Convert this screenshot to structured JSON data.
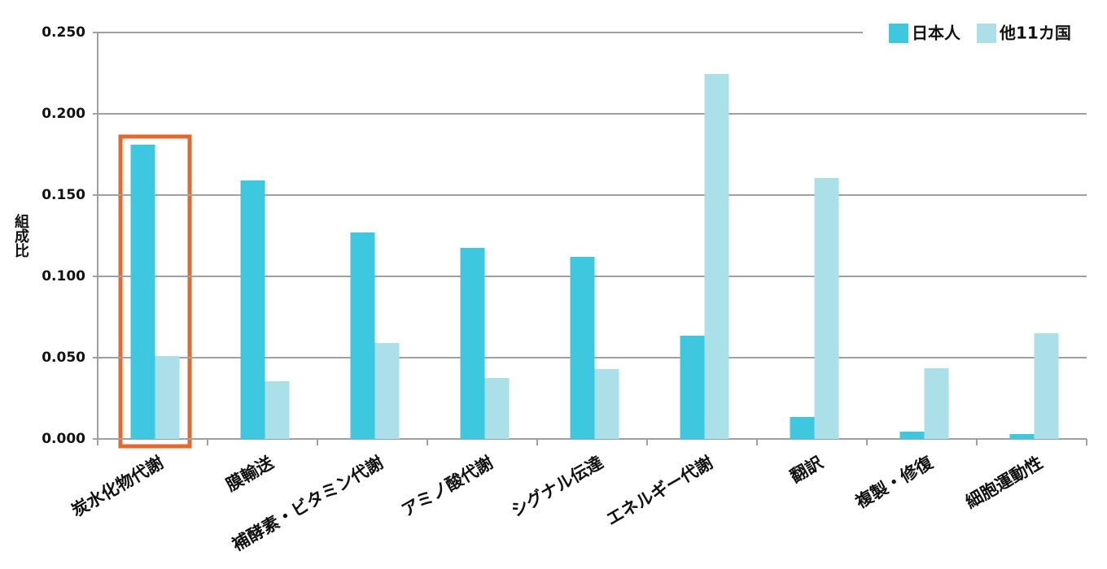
{
  "chart_data": {
    "type": "bar",
    "y_label": "組成比",
    "categories": [
      "炭水化物代謝",
      "膜輸送",
      "補酵素・ビタミン代謝",
      "アミノ酸代謝",
      "シグナル伝達",
      "エネルギー代謝",
      "翻訳",
      "複製・修復",
      "細胞運動性"
    ],
    "series": [
      {
        "name": "日本人",
        "color": "#3ec8e0",
        "values": [
          0.181,
          0.159,
          0.127,
          0.1175,
          0.112,
          0.0635,
          0.0135,
          0.0045,
          0.003
        ]
      },
      {
        "name": "他11カ国",
        "color": "#abe0e8",
        "values": [
          0.051,
          0.0355,
          0.059,
          0.0375,
          0.043,
          0.2245,
          0.1605,
          0.0435,
          0.065
        ]
      }
    ],
    "ylim": [
      0,
      0.25
    ],
    "yticks": [
      {
        "value": 0,
        "label": "0.000"
      },
      {
        "value": 0.05,
        "label": "0.050"
      },
      {
        "value": 0.1,
        "label": "0.100"
      },
      {
        "value": 0.15,
        "label": "0.150"
      },
      {
        "value": 0.2,
        "label": "0.200"
      },
      {
        "value": 0.25,
        "label": "0.250"
      }
    ],
    "grid": true,
    "legend": "top-right"
  }
}
